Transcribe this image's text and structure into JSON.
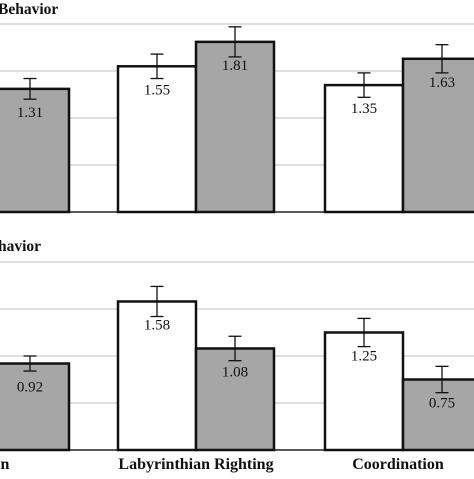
{
  "chart_data": [
    {
      "type": "bar",
      "title": "Behavior",
      "categories": [
        "",
        "Labyrinthian Righting",
        "Coordination"
      ],
      "series": [
        {
          "values": [
            null,
            1.55,
            1.35
          ],
          "errors": [
            null,
            0.13,
            0.13
          ]
        },
        {
          "values": [
            1.31,
            1.81,
            1.63
          ],
          "errors": [
            0.11,
            0.16,
            0.15
          ]
        }
      ],
      "data_labels": [
        [
          "",
          "1.55",
          "1.35"
        ],
        [
          "1.31",
          "1.81",
          "1.63"
        ]
      ],
      "ylim": [
        0,
        2
      ],
      "grid": true,
      "series_colors": [
        "#ffffff",
        "#a6a6a6"
      ]
    },
    {
      "type": "bar",
      "title": "havior",
      "categories": [
        "ion",
        "Labyrinthian Righting",
        "Coordination"
      ],
      "series": [
        {
          "values": [
            null,
            1.58,
            1.25
          ],
          "errors": [
            null,
            0.16,
            0.15
          ]
        },
        {
          "values": [
            0.92,
            1.08,
            0.75
          ],
          "errors": [
            0.08,
            0.13,
            0.14
          ]
        }
      ],
      "data_labels": [
        [
          "",
          "1.58",
          "1.25"
        ],
        [
          "0.92",
          "1.08",
          "0.75"
        ]
      ],
      "ylim": [
        0,
        2
      ],
      "grid": true,
      "series_colors": [
        "#ffffff",
        "#a6a6a6"
      ]
    }
  ]
}
